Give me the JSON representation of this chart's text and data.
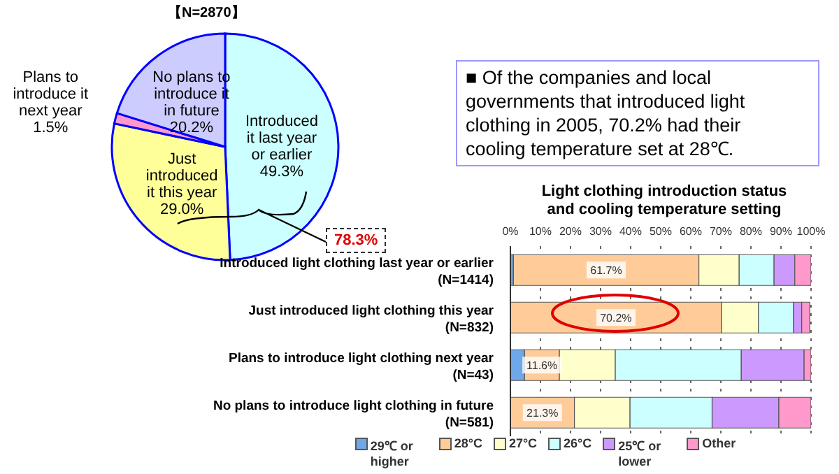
{
  "chart_data": [
    {
      "type": "pie",
      "categories": [
        "Introduced\nit last year\nor earlier",
        "Just\nintroduced\nit this year",
        "Plans to\nintroduce it\nnext year",
        "No plans to\nintroduce it\nin future"
      ],
      "values": [
        49.3,
        29.0,
        1.5,
        20.2
      ],
      "colors": [
        "#ccffff",
        "#ffff99",
        "#ff99cc",
        "#ccccff"
      ],
      "value_labels": [
        "49.3%",
        "29.0%",
        "1.5%",
        "20.2%"
      ],
      "legend": false,
      "annotations": [
        "【N=2870】",
        "78.3%"
      ]
    },
    {
      "type": "bar",
      "orientation": "horizontal",
      "stacked": true,
      "title": "Light clothing introduction status\nand cooling temperature setting",
      "categories": [
        "Introduced light clothing last year or earlier\n(N=1414)",
        "Just introduced light clothing this year\n(N=832)",
        "Plans to introduce light clothing next year\n(N=43)",
        "No plans to introduce light clothing in future\n(N=581)"
      ],
      "series": [
        {
          "name": "29℃ or higher",
          "color": "#6fa8e8",
          "values": [
            1.0,
            null,
            4.7,
            0
          ]
        },
        {
          "name": "28°C",
          "color": "#ffcc99",
          "values": [
            61.7,
            70.2,
            11.6,
            21.3
          ],
          "value_labels": [
            "61.7%",
            "70.2%",
            "11.6%",
            "21.3%"
          ]
        },
        {
          "name": "27°C",
          "color": "#ffffcc",
          "values": [
            13.4,
            12.3,
            18.6,
            18.5
          ]
        },
        {
          "name": "26°C",
          "color": "#ccffff",
          "values": [
            11.6,
            11.7,
            41.9,
            27.3
          ]
        },
        {
          "name": "25℃ or lower",
          "color": "#cc99ff",
          "values": [
            6.9,
            2.7,
            20.9,
            22.2
          ]
        },
        {
          "name": "Other",
          "color": "#ff99cc",
          "values": [
            5.4,
            2.7,
            2.3,
            10.7
          ]
        }
      ],
      "xlim": [
        0,
        100
      ],
      "xticks": [
        {
          "value": 0,
          "label": "0%"
        },
        {
          "value": 10,
          "label": "10%"
        },
        {
          "value": 20,
          "label": "20%"
        },
        {
          "value": 30,
          "label": "30%"
        },
        {
          "value": 40,
          "label": "40%"
        },
        {
          "value": 50,
          "label": "50%"
        },
        {
          "value": 60,
          "label": "60%"
        },
        {
          "value": 70,
          "label": "70%"
        },
        {
          "value": 80,
          "label": "80%"
        },
        {
          "value": 90,
          "label": "90%"
        },
        {
          "value": 100,
          "label": "100%"
        }
      ],
      "grid": "x",
      "legend": "bottom",
      "annotations": [
        "■ Of the companies and local governments that introduced light clothing in 2005, 70.2% had their cooling temperature set at 28℃."
      ]
    }
  ]
}
